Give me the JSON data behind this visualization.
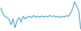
{
  "values": [
    2.5,
    0.5,
    -0.5,
    -1.0,
    -1.5,
    -3.5,
    -1.5,
    -4.5,
    -2.0,
    -1.0,
    -2.5,
    -0.5,
    -1.5,
    -0.8,
    -0.5,
    -1.0,
    -0.3,
    -0.8,
    -0.5,
    -0.9,
    -0.4,
    -0.8,
    -0.5,
    -0.7,
    -0.3,
    -0.6,
    -0.4,
    -0.8,
    -0.5,
    -1.0,
    -0.5,
    -0.8,
    -0.3,
    -0.6,
    0.5,
    2.0,
    4.5,
    3.0,
    1.5,
    -5.0
  ],
  "line_color": "#3399cc",
  "background_color": "#ffffff",
  "linewidth": 0.8
}
